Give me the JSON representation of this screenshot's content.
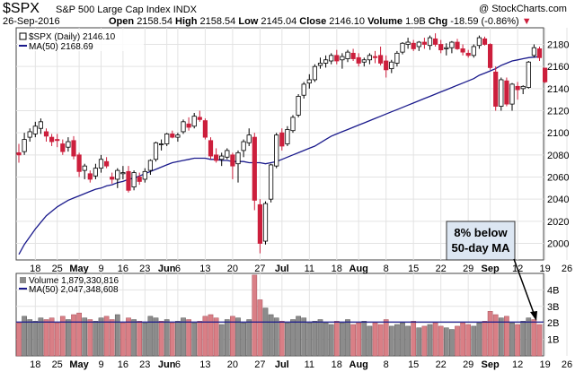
{
  "header": {
    "symbol": "$SPX",
    "name": "S&P 500 Large Cap Index",
    "exchange": "INDX",
    "watermark": "@ StockCharts.com",
    "date": "26-Sep-2016",
    "open_label": "Open",
    "open": "2158.54",
    "high_label": "High",
    "high": "2158.54",
    "low_label": "Low",
    "low": "2145.04",
    "close_label": "Close",
    "close": "2146.10",
    "volume_label": "Volume",
    "volume": "1.9B",
    "chg_label": "Chg",
    "chg": "-18.59 (-0.86%)"
  },
  "colors": {
    "up": "#000000",
    "down": "#cc1f3c",
    "ma": "#1a1a8c",
    "vol_up": "#8c8c8c",
    "vol_down": "#d97f86",
    "grid": "#e3e3e3"
  },
  "chart_data": [
    {
      "type": "candlestick",
      "legend": [
        "$SPX (Daily) 2146.10",
        "MA(50) 2168.69"
      ],
      "ylim": [
        1985,
        2195
      ],
      "yticks": [
        2000,
        2020,
        2040,
        2060,
        2080,
        2100,
        2120,
        2140,
        2160,
        2180
      ],
      "x_tick_labels": [
        "18",
        "25",
        "May",
        "9",
        "16",
        "23",
        "Jun",
        "6",
        "13",
        "20",
        "27",
        "Jul",
        "11",
        "18",
        "Aug",
        "8",
        "15",
        "22",
        "29",
        "Sep",
        "12",
        "19",
        "26"
      ],
      "month_labels": [
        "May",
        "Jun",
        "Jul",
        "Aug",
        "Sep"
      ],
      "series": [
        {
          "name": "$SPX",
          "ohlc": [
            [
              2082,
              2090,
              2073,
              2080
            ],
            [
              2083,
              2100,
              2080,
              2094
            ],
            [
              2096,
              2104,
              2092,
              2101
            ],
            [
              2099,
              2110,
              2096,
              2106
            ],
            [
              2104,
              2113,
              2099,
              2110
            ],
            [
              2101,
              2104,
              2092,
              2097
            ],
            [
              2096,
              2099,
              2088,
              2092
            ],
            [
              2094,
              2099,
              2087,
              2093
            ],
            [
              2090,
              2094,
              2080,
              2083
            ],
            [
              2087,
              2096,
              2083,
              2092
            ],
            [
              2093,
              2097,
              2076,
              2079
            ],
            [
              2080,
              2082,
              2060,
              2065
            ],
            [
              2066,
              2072,
              2058,
              2070
            ],
            [
              2063,
              2066,
              2055,
              2058
            ],
            [
              2061,
              2072,
              2058,
              2068
            ],
            [
              2068,
              2080,
              2064,
              2076
            ],
            [
              2074,
              2078,
              2068,
              2070
            ],
            [
              2060,
              2064,
              2054,
              2058
            ],
            [
              2058,
              2068,
              2050,
              2066
            ],
            [
              2063,
              2070,
              2058,
              2064
            ],
            [
              2065,
              2070,
              2046,
              2048
            ],
            [
              2051,
              2066,
              2048,
              2064
            ],
            [
              2060,
              2064,
              2053,
              2056
            ],
            [
              2058,
              2068,
              2055,
              2065
            ],
            [
              2066,
              2076,
              2062,
              2075
            ],
            [
              2076,
              2092,
              2074,
              2091
            ],
            [
              2090,
              2094,
              2084,
              2090
            ],
            [
              2090,
              2100,
              2088,
              2099
            ],
            [
              2099,
              2102,
              2095,
              2096
            ],
            [
              2096,
              2100,
              2092,
              2098
            ],
            [
              2101,
              2112,
              2099,
              2110
            ],
            [
              2108,
              2114,
              2102,
              2105
            ],
            [
              2106,
              2118,
              2104,
              2115
            ],
            [
              2114,
              2120,
              2110,
              2112
            ],
            [
              2111,
              2113,
              2094,
              2096
            ],
            [
              2093,
              2096,
              2076,
              2079
            ],
            [
              2080,
              2086,
              2073,
              2075
            ],
            [
              2076,
              2082,
              2070,
              2079
            ],
            [
              2078,
              2086,
              2076,
              2084
            ],
            [
              2080,
              2082,
              2058,
              2070
            ],
            [
              2072,
              2084,
              2055,
              2082
            ],
            [
              2084,
              2094,
              2078,
              2092
            ],
            [
              2091,
              2104,
              2088,
              2098
            ],
            [
              2096,
              2100,
              2030,
              2039
            ],
            [
              2035,
              2040,
              1991,
              2000
            ],
            [
              2002,
              2038,
              1999,
              2036
            ],
            [
              2040,
              2072,
              2037,
              2071
            ],
            [
              2070,
              2100,
              2068,
              2098
            ],
            [
              2100,
              2104,
              2084,
              2088
            ],
            [
              2090,
              2106,
              2088,
              2103
            ],
            [
              2102,
              2116,
              2100,
              2114
            ],
            [
              2116,
              2135,
              2114,
              2133
            ],
            [
              2134,
              2146,
              2131,
              2144
            ],
            [
              2145,
              2153,
              2140,
              2148
            ],
            [
              2148,
              2162,
              2146,
              2160
            ],
            [
              2161,
              2168,
              2158,
              2163
            ],
            [
              2163,
              2170,
              2159,
              2166
            ],
            [
              2165,
              2172,
              2162,
              2170
            ],
            [
              2170,
              2175,
              2162,
              2165
            ],
            [
              2166,
              2172,
              2158,
              2169
            ],
            [
              2167,
              2175,
              2164,
              2173
            ],
            [
              2172,
              2176,
              2165,
              2167
            ],
            [
              2168,
              2172,
              2160,
              2163
            ],
            [
              2164,
              2168,
              2160,
              2166
            ],
            [
              2166,
              2172,
              2162,
              2170
            ],
            [
              2169,
              2174,
              2163,
              2168
            ],
            [
              2170,
              2178,
              2161,
              2163
            ],
            [
              2165,
              2170,
              2150,
              2157
            ],
            [
              2158,
              2166,
              2154,
              2164
            ],
            [
              2163,
              2174,
              2160,
              2172
            ],
            [
              2173,
              2182,
              2171,
              2181
            ],
            [
              2180,
              2186,
              2176,
              2182
            ],
            [
              2181,
              2184,
              2174,
              2176
            ],
            [
              2178,
              2183,
              2174,
              2182
            ],
            [
              2182,
              2186,
              2176,
              2180
            ],
            [
              2179,
              2188,
              2175,
              2186
            ],
            [
              2185,
              2190,
              2178,
              2180
            ],
            [
              2180,
              2184,
              2172,
              2175
            ],
            [
              2176,
              2181,
              2170,
              2177
            ],
            [
              2177,
              2183,
              2172,
              2182
            ],
            [
              2182,
              2185,
              2175,
              2176
            ],
            [
              2176,
              2180,
              2170,
              2173
            ],
            [
              2172,
              2175,
              2168,
              2170
            ],
            [
              2170,
              2180,
              2168,
              2178
            ],
            [
              2179,
              2188,
              2176,
              2186
            ],
            [
              2185,
              2187,
              2179,
              2180
            ],
            [
              2180,
              2181,
              2157,
              2159
            ],
            [
              2155,
              2160,
              2120,
              2124
            ],
            [
              2124,
              2150,
              2120,
              2148
            ],
            [
              2147,
              2150,
              2124,
              2126
            ],
            [
              2126,
              2145,
              2120,
              2144
            ],
            [
              2142,
              2146,
              2130,
              2139
            ],
            [
              2140,
              2143,
              2135,
              2142
            ],
            [
              2141,
              2165,
              2140,
              2164
            ],
            [
              2170,
              2180,
              2168,
              2177
            ],
            [
              2176,
              2178,
              2165,
              2168
            ],
            [
              2158.54,
              2158.54,
              2145.04,
              2146.1
            ]
          ]
        },
        {
          "name": "MA(50)",
          "values": [
            1990,
            1999,
            2006,
            2013,
            2019,
            2025,
            2029,
            2033,
            2036,
            2039,
            2041,
            2043,
            2045,
            2047,
            2049,
            2050,
            2052,
            2053,
            2055,
            2056,
            2058,
            2059,
            2061,
            2063,
            2065,
            2067,
            2069,
            2071,
            2073,
            2074,
            2075,
            2076,
            2077,
            2077,
            2077,
            2076,
            2076,
            2075,
            2075,
            2074,
            2074,
            2074,
            2073,
            2073,
            2073,
            2072,
            2073,
            2074,
            2076,
            2078,
            2080,
            2082,
            2084,
            2086,
            2088,
            2091,
            2094,
            2097,
            2099,
            2101,
            2103,
            2105,
            2107,
            2109,
            2111,
            2113,
            2115,
            2117,
            2119,
            2121,
            2123,
            2125,
            2127,
            2129,
            2131,
            2133,
            2135,
            2137,
            2139,
            2141,
            2143,
            2145,
            2147,
            2149,
            2152,
            2154,
            2156,
            2158,
            2161,
            2163,
            2165,
            2166,
            2167,
            2168,
            2168.5,
            2168.69
          ]
        }
      ]
    },
    {
      "type": "bar",
      "legend": [
        "Volume 1,879,330,816",
        "MA(50) 2,047,348,608"
      ],
      "ylim": [
        0,
        5
      ],
      "yticks": [
        "1B",
        "2B",
        "3B",
        "4B"
      ],
      "series": [
        {
          "name": "Volume",
          "values_billion": [
            2.0,
            2.4,
            2.2,
            2.1,
            2.3,
            2.2,
            2.3,
            2.0,
            2.4,
            2.2,
            2.5,
            2.6,
            2.3,
            2.2,
            2.1,
            2.3,
            2.4,
            2.2,
            2.5,
            2.0,
            2.3,
            2.2,
            2.1,
            2.0,
            2.4,
            2.3,
            2.1,
            2.2,
            2.0,
            2.1,
            2.3,
            2.2,
            2.0,
            2.1,
            2.4,
            2.5,
            2.3,
            1.9,
            2.2,
            2.4,
            2.3,
            2.0,
            2.2,
            4.9,
            3.4,
            2.9,
            2.5,
            2.3,
            2.1,
            2.0,
            2.2,
            2.4,
            2.3,
            2.0,
            2.1,
            2.2,
            2.0,
            1.9,
            2.1,
            2.0,
            2.2,
            1.9,
            2.0,
            2.1,
            1.8,
            2.0,
            1.9,
            2.2,
            1.8,
            1.9,
            2.0,
            1.8,
            2.1,
            1.7,
            1.8,
            1.9,
            2.0,
            1.8,
            1.7,
            1.6,
            1.8,
            2.0,
            1.9,
            1.8,
            2.0,
            2.1,
            2.7,
            2.5,
            2.3,
            2.4,
            2.0,
            1.9,
            2.1,
            2.3,
            2.2,
            1.9
          ],
          "down": [
            1,
            0,
            0,
            0,
            0,
            1,
            1,
            1,
            1,
            0,
            1,
            1,
            0,
            1,
            0,
            0,
            1,
            1,
            0,
            1,
            1,
            0,
            1,
            0,
            0,
            0,
            1,
            0,
            1,
            0,
            0,
            1,
            0,
            1,
            1,
            1,
            1,
            0,
            0,
            1,
            0,
            0,
            0,
            1,
            1,
            0,
            0,
            0,
            1,
            0,
            0,
            0,
            0,
            0,
            0,
            0,
            0,
            0,
            1,
            0,
            0,
            1,
            1,
            0,
            0,
            1,
            1,
            1,
            0,
            0,
            0,
            0,
            1,
            0,
            1,
            0,
            1,
            1,
            0,
            0,
            1,
            1,
            1,
            0,
            0,
            1,
            1,
            1,
            0,
            1,
            0,
            1,
            0,
            0,
            1,
            1
          ]
        },
        {
          "name": "MA(50)",
          "values_billion": [
            2.05
          ]
        }
      ]
    }
  ],
  "annotation": {
    "line1": "8% below",
    "line2": "50-day MA"
  }
}
